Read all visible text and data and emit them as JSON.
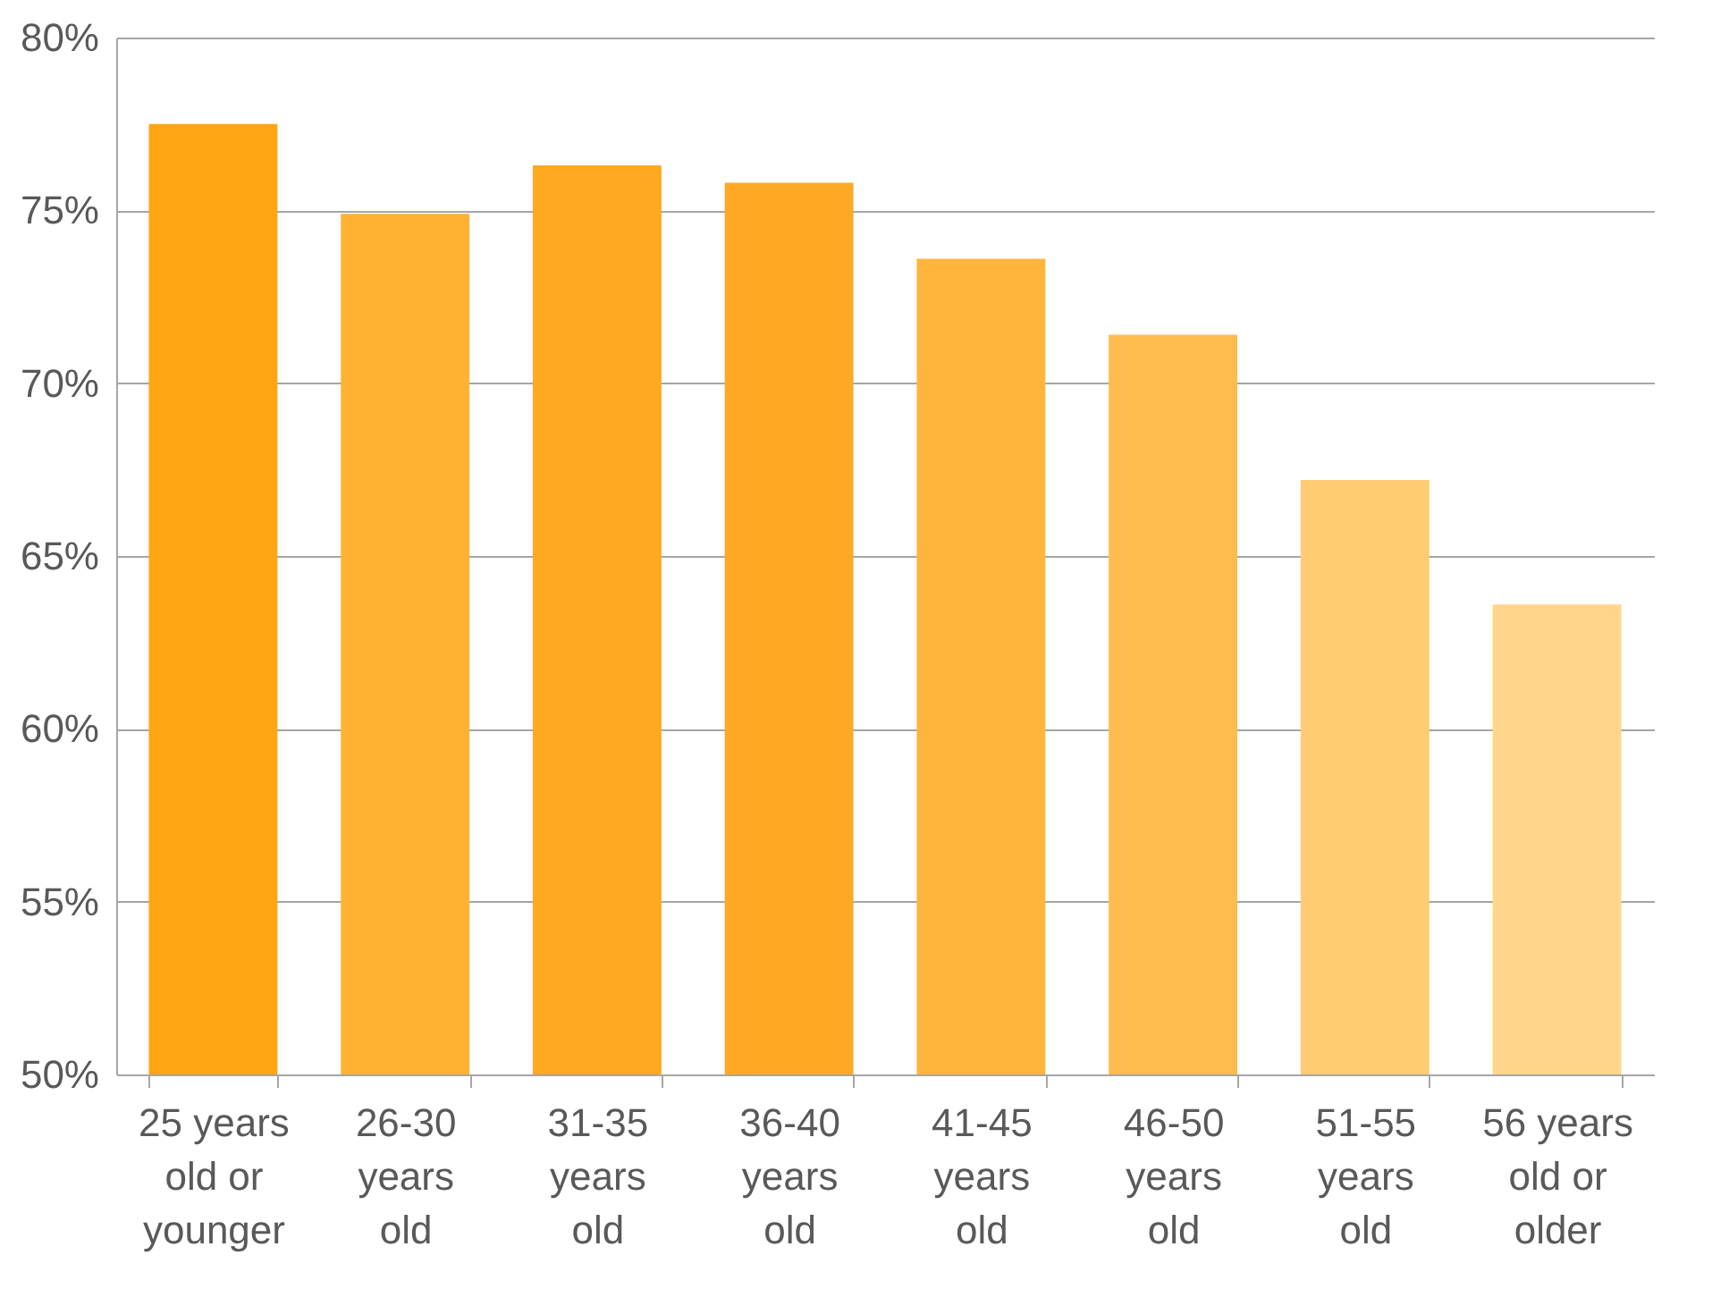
{
  "chart_data": {
    "type": "bar",
    "categories": [
      "25 years old or younger",
      "26-30 years old",
      "31-35 years old",
      "36-40 years old",
      "41-45 years old",
      "46-50 years old",
      "51-55 years old",
      "56 years old or older"
    ],
    "values": [
      77.5,
      74.9,
      76.3,
      75.8,
      73.6,
      71.4,
      67.2,
      63.6
    ],
    "colors": [
      "#ffa514",
      "#ffb232",
      "#ffa820",
      "#ffa824",
      "#ffb53c",
      "#ffbb4e",
      "#ffcb73",
      "#ffd68c"
    ],
    "ylim": [
      50,
      80
    ],
    "yticks": [
      {
        "value": 50,
        "label": "50%"
      },
      {
        "value": 55,
        "label": "55%"
      },
      {
        "value": 60,
        "label": "60%"
      },
      {
        "value": 65,
        "label": "65%"
      },
      {
        "value": 70,
        "label": "70%"
      },
      {
        "value": 75,
        "label": "75%"
      },
      {
        "value": 80,
        "label": "80%"
      }
    ],
    "grid": "y"
  }
}
